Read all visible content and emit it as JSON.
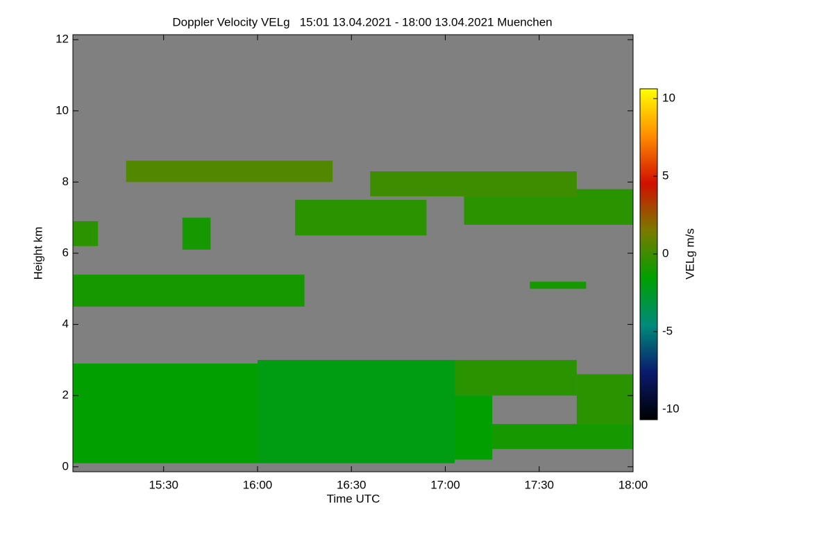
{
  "chart_data": {
    "type": "heatmap",
    "title": "Doppler Velocity VELg   15:01 13.04.2021 - 18:00 13.04.2021 Muenchen",
    "x_label": "Time UTC",
    "y_label": "Height km",
    "colorbar_label": "VELg m/s",
    "xlim": [
      15.0167,
      18.0
    ],
    "xticks": [
      {
        "value": 15.5,
        "label": "15:30"
      },
      {
        "value": 16.0,
        "label": "16:00"
      },
      {
        "value": 16.5,
        "label": "16:30"
      },
      {
        "value": 17.0,
        "label": "17:00"
      },
      {
        "value": 17.5,
        "label": "17:30"
      },
      {
        "value": 18.0,
        "label": "18:00"
      }
    ],
    "ylim": [
      -0.14,
      12.14
    ],
    "yticks": [
      0,
      2,
      4,
      6,
      8,
      10,
      12
    ],
    "clim": [
      -10.67,
      10.63
    ],
    "cticks": [
      -10,
      -5,
      0,
      5,
      10
    ],
    "colorscale": [
      "#000000",
      "#0a1a6e",
      "#008b7a",
      "#00a000",
      "#7a7a00",
      "#d01000",
      "#ff8c00",
      "#ffff00"
    ],
    "background": "#808080",
    "regions": [
      {
        "x": [
          15.02,
          16.0
        ],
        "y": [
          0.1,
          2.9
        ],
        "value": -1.5
      },
      {
        "x": [
          16.0,
          17.05
        ],
        "y": [
          0.1,
          3.0
        ],
        "value": -2
      },
      {
        "x": [
          17.05,
          17.7
        ],
        "y": [
          2.0,
          3.0
        ],
        "value": -0.5
      },
      {
        "x": [
          17.05,
          17.25
        ],
        "y": [
          0.2,
          2.0
        ],
        "value": -1.5
      },
      {
        "x": [
          17.25,
          18.0
        ],
        "y": [
          0.5,
          1.2
        ],
        "value": -1
      },
      {
        "x": [
          17.7,
          18.0
        ],
        "y": [
          1.2,
          2.6
        ],
        "value": -0.5
      },
      {
        "x": [
          15.02,
          16.25
        ],
        "y": [
          4.5,
          5.4
        ],
        "value": -1
      },
      {
        "x": [
          17.45,
          17.75
        ],
        "y": [
          5.0,
          5.2
        ],
        "value": -1
      },
      {
        "x": [
          16.2,
          16.9
        ],
        "y": [
          6.5,
          7.5
        ],
        "value": -0.5
      },
      {
        "x": [
          15.02,
          15.15
        ],
        "y": [
          6.2,
          6.9
        ],
        "value": -0.5
      },
      {
        "x": [
          15.6,
          15.75
        ],
        "y": [
          6.1,
          7.0
        ],
        "value": -1
      },
      {
        "x": [
          17.1,
          18.0
        ],
        "y": [
          6.8,
          7.8
        ],
        "value": -0.5
      },
      {
        "x": [
          15.3,
          16.4
        ],
        "y": [
          8.0,
          8.6
        ],
        "value": 0.5
      },
      {
        "x": [
          16.6,
          17.7
        ],
        "y": [
          7.6,
          8.3
        ],
        "value": 0
      }
    ]
  }
}
